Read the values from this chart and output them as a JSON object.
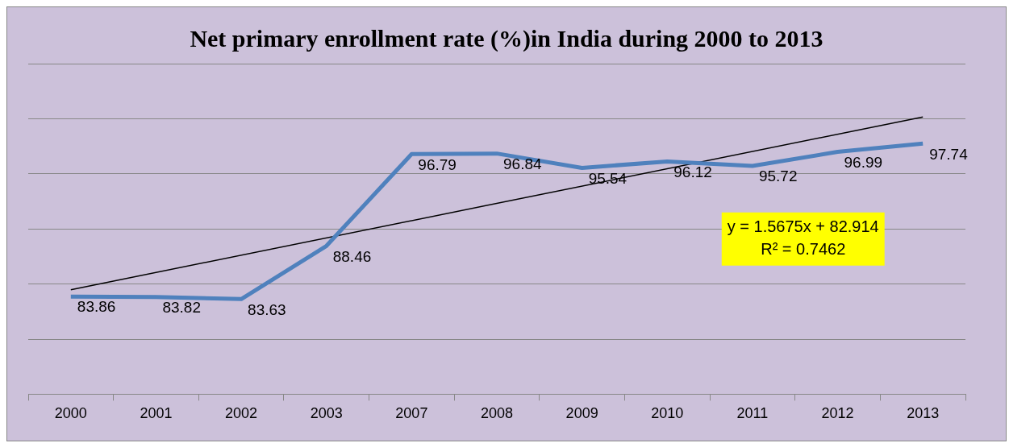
{
  "chart_data": {
    "type": "line",
    "title": "Net primary enrollment rate (%)in India during 2000 to 2013",
    "categories": [
      "2000",
      "2001",
      "2002",
      "2003",
      "2007",
      "2008",
      "2009",
      "2010",
      "2011",
      "2012",
      "2013"
    ],
    "series": [
      {
        "color": "#4f81bd",
        "values": [
          83.86,
          83.82,
          83.63,
          88.46,
          96.79,
          96.84,
          95.54,
          96.12,
          95.72,
          96.99,
          97.74
        ],
        "value_labels": [
          "83.86",
          "83.82",
          "83.63",
          "88.46",
          "96.79",
          "96.84",
          "95.54",
          "96.12",
          "95.72",
          "96.99",
          "97.74"
        ]
      },
      {
        "color": "#000000",
        "values": [
          84.48,
          null,
          null,
          null,
          null,
          null,
          null,
          null,
          null,
          null,
          100.16
        ]
      }
    ],
    "ylim": [
      75,
      105
    ],
    "yticks": [
      {
        "value": 75,
        "label": null
      },
      {
        "value": 80,
        "label": null
      },
      {
        "value": 85,
        "label": null
      },
      {
        "value": 90,
        "label": null
      },
      {
        "value": 95,
        "label": null
      },
      {
        "value": 100,
        "label": null
      },
      {
        "value": 105,
        "label": null
      }
    ],
    "tick_labels": "x",
    "grid": "y",
    "legend": false,
    "marker": "none",
    "annotations": [
      "y = 1.5675x + 82.914",
      "R² = 0.7462"
    ]
  }
}
